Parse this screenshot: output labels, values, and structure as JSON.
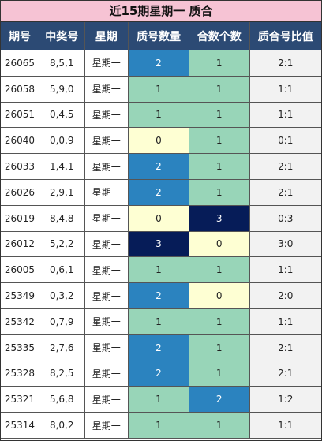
{
  "title": "近15期星期一 质合",
  "headers": [
    "期号",
    "中奖号",
    "星期",
    "质号数量",
    "合数个数",
    "质合号比值"
  ],
  "palette": {
    "0": "#feffd3",
    "1": "#98d5b8",
    "2": "#2b83bf",
    "3": "#061c58",
    "dark_text": "#222222",
    "light_text": "#ffffff"
  },
  "chart_data": {
    "type": "table",
    "title": "近15期星期一 质合",
    "columns": [
      "期号",
      "中奖号",
      "星期",
      "质号数量",
      "合数个数",
      "质合号比值"
    ],
    "rows": [
      [
        "26065",
        "8,5,1",
        "星期一",
        2,
        1,
        "2:1"
      ],
      [
        "26058",
        "5,9,0",
        "星期一",
        1,
        1,
        "1:1"
      ],
      [
        "26051",
        "0,4,5",
        "星期一",
        1,
        1,
        "1:1"
      ],
      [
        "26040",
        "0,0,9",
        "星期一",
        0,
        1,
        "0:1"
      ],
      [
        "26033",
        "1,4,1",
        "星期一",
        2,
        1,
        "2:1"
      ],
      [
        "26026",
        "2,9,1",
        "星期一",
        2,
        1,
        "2:1"
      ],
      [
        "26019",
        "8,4,8",
        "星期一",
        0,
        3,
        "0:3"
      ],
      [
        "26012",
        "5,2,2",
        "星期一",
        3,
        0,
        "3:0"
      ],
      [
        "26005",
        "0,6,1",
        "星期一",
        1,
        1,
        "1:1"
      ],
      [
        "25349",
        "0,3,2",
        "星期一",
        2,
        0,
        "2:0"
      ],
      [
        "25342",
        "0,7,9",
        "星期一",
        1,
        1,
        "1:1"
      ],
      [
        "25335",
        "2,7,6",
        "星期一",
        2,
        1,
        "2:1"
      ],
      [
        "25328",
        "8,2,5",
        "星期一",
        2,
        1,
        "2:1"
      ],
      [
        "25321",
        "5,6,8",
        "星期一",
        1,
        2,
        "1:2"
      ],
      [
        "25314",
        "8,0,2",
        "星期一",
        1,
        1,
        "1:1"
      ]
    ]
  }
}
